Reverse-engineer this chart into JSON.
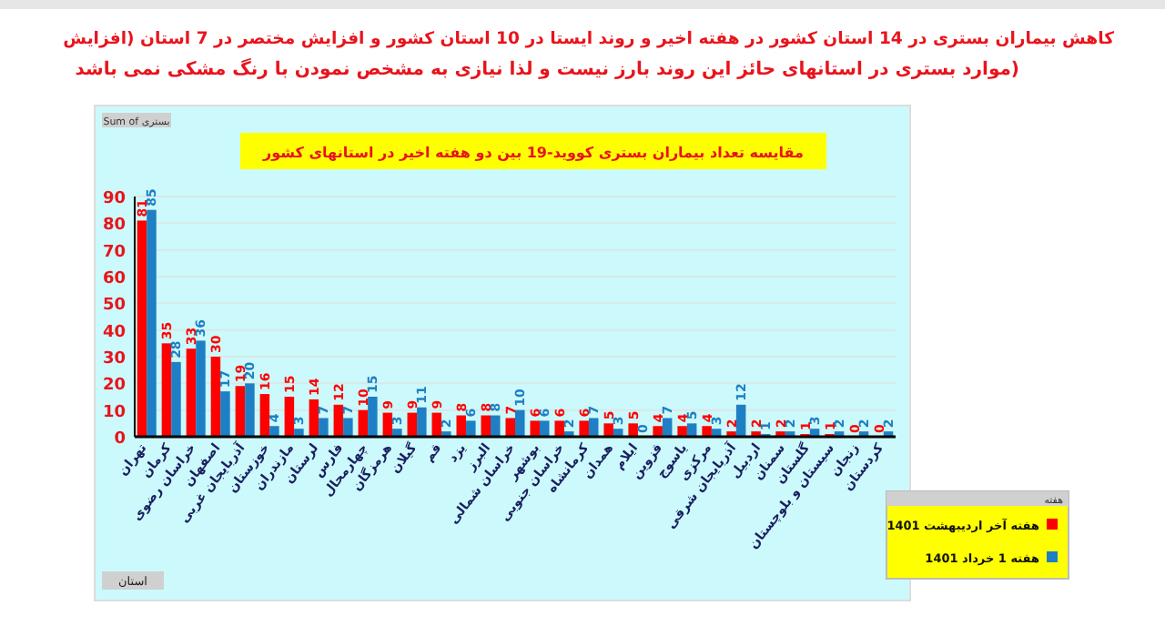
{
  "chart_data": {
    "type": "bar",
    "title": "کاهش بیماران بستری در 14 استان کشور در هفته اخیر و روند ایستا در 10 استان کشور و افزایش مختصر در 7 استان (افزایش",
    "subtitle": "موارد بستری در استانهای حائز  این روند بارز نیست و لذا نیازی به مشخص نمودن با رنگ مشکی نمی باشد)",
    "annotations": [
      "مقایسه تعداد بیماران بستری کووید-19 بین دو هفته اخیر در استانهای کشور",
      "Sum of بستری",
      "استان"
    ],
    "categories": [
      "تهران",
      "کرمان",
      "خراسان رضوی",
      "اصفهان",
      "آذربایجان غربی",
      "خوزستان",
      "مازندران",
      "لرستان",
      "فارس",
      "چهارمحال",
      "هرمزگان",
      "گیلان",
      "قم",
      "یزد",
      "البرز",
      "خراسان شمالی",
      "بوشهر",
      "خراسان جنوبی",
      "کرمانشاه",
      "همدان",
      "ایلام",
      "قزوین",
      "یاسوج",
      "مرکزی",
      "آذربایجان شرقی",
      "اردبیل",
      "سمنان",
      "گلستان",
      "سیستان و بلوچستان",
      "زنجان",
      "کردستان"
    ],
    "series": [
      {
        "name": "هفته آخر اردیبهشت 1401",
        "color": "#ff0000",
        "values": [
          81,
          35,
          33,
          30,
          19,
          16,
          15,
          14,
          12,
          10,
          9,
          9,
          9,
          8,
          8,
          7,
          6,
          6,
          6,
          5,
          5,
          4,
          4,
          4,
          2,
          2,
          2,
          1,
          1,
          0,
          0
        ]
      },
      {
        "name": "هفته 1 خرداد 1401",
        "color": "#1e7fc4",
        "values": [
          85,
          28,
          36,
          17,
          20,
          4,
          3,
          7,
          7,
          15,
          3,
          11,
          2,
          6,
          8,
          10,
          6,
          2,
          7,
          3,
          0,
          7,
          5,
          3,
          12,
          1,
          2,
          3,
          2,
          2,
          2
        ]
      }
    ],
    "ylim": [
      0,
      90
    ],
    "yticks": [
      0,
      10,
      20,
      30,
      40,
      50,
      60,
      70,
      80,
      90
    ],
    "grid": "y",
    "data_labels": true,
    "legend": "bottom right",
    "legend_title": "هفته"
  }
}
